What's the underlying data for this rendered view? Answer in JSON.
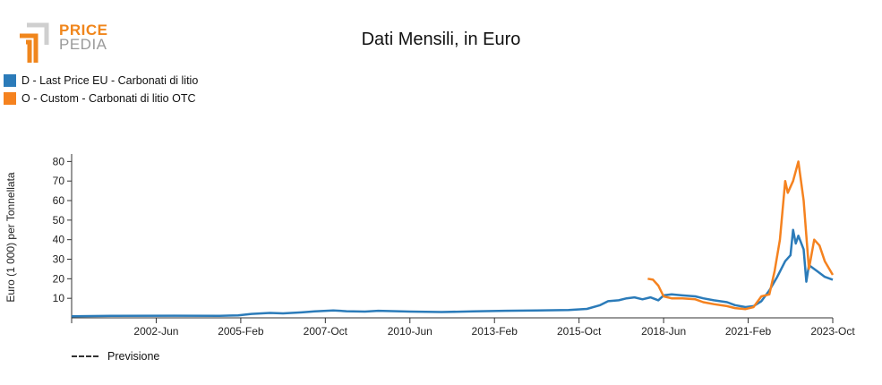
{
  "logo": {
    "line1": "PRICE",
    "line2": "PEDIA"
  },
  "colors": {
    "series_eu": "#2b7bb9",
    "series_otc": "#f5821f",
    "axis": "#333333"
  },
  "chart_data": {
    "type": "line",
    "title": "Dati Mensili, in Euro",
    "ylabel": "Euro (1 000) per Tonnellata",
    "xlabel": "",
    "ylim": [
      0,
      82
    ],
    "yticks": [
      10,
      20,
      30,
      40,
      50,
      60,
      70,
      80
    ],
    "xlim": [
      "1999-10",
      "2023-10"
    ],
    "xticks": [
      "2002-Jun",
      "2005-Feb",
      "2007-Oct",
      "2010-Jun",
      "2013-Feb",
      "2015-Oct",
      "2018-Jun",
      "2021-Feb",
      "2023-Oct"
    ],
    "xtick_months": [
      "2002-06",
      "2005-02",
      "2007-10",
      "2010-06",
      "2013-02",
      "2015-10",
      "2018-06",
      "2021-02",
      "2023-10"
    ],
    "legend_position": "top-left",
    "forecast_label": "Previsione",
    "series": [
      {
        "name": "D - Last Price EU - Carbonati di litio",
        "color": "#2b7bb9",
        "points": [
          [
            "1999-10",
            0.8
          ],
          [
            "2001-01",
            1.0
          ],
          [
            "2003-01",
            1.1
          ],
          [
            "2004-06",
            1.0
          ],
          [
            "2005-01",
            1.3
          ],
          [
            "2005-06",
            2.0
          ],
          [
            "2006-01",
            2.5
          ],
          [
            "2006-06",
            2.3
          ],
          [
            "2007-01",
            2.8
          ],
          [
            "2007-06",
            3.3
          ],
          [
            "2008-01",
            3.8
          ],
          [
            "2008-06",
            3.4
          ],
          [
            "2009-01",
            3.2
          ],
          [
            "2009-06",
            3.6
          ],
          [
            "2010-01",
            3.4
          ],
          [
            "2010-06",
            3.2
          ],
          [
            "2011-06",
            3.0
          ],
          [
            "2012-06",
            3.3
          ],
          [
            "2013-06",
            3.6
          ],
          [
            "2014-06",
            3.8
          ],
          [
            "2015-06",
            4.0
          ],
          [
            "2016-01",
            4.6
          ],
          [
            "2016-06",
            6.5
          ],
          [
            "2016-09",
            8.5
          ],
          [
            "2017-01",
            9.0
          ],
          [
            "2017-04",
            10.0
          ],
          [
            "2017-07",
            10.5
          ],
          [
            "2017-10",
            9.5
          ],
          [
            "2018-01",
            10.5
          ],
          [
            "2018-04",
            9.0
          ],
          [
            "2018-06",
            11.5
          ],
          [
            "2018-09",
            12.0
          ],
          [
            "2019-01",
            11.5
          ],
          [
            "2019-06",
            11.0
          ],
          [
            "2019-09",
            10.0
          ],
          [
            "2020-01",
            9.0
          ],
          [
            "2020-06",
            8.0
          ],
          [
            "2020-09",
            6.5
          ],
          [
            "2021-01",
            5.5
          ],
          [
            "2021-04",
            6.0
          ],
          [
            "2021-07",
            8.5
          ],
          [
            "2021-10",
            14.0
          ],
          [
            "2022-01",
            21.0
          ],
          [
            "2022-04",
            29.0
          ],
          [
            "2022-06",
            32.0
          ],
          [
            "2022-07",
            45.0
          ],
          [
            "2022-08",
            38.0
          ],
          [
            "2022-09",
            42.0
          ],
          [
            "2022-11",
            35.0
          ],
          [
            "2022-12",
            18.5
          ],
          [
            "2023-01",
            27.0
          ],
          [
            "2023-04",
            24.0
          ],
          [
            "2023-07",
            21.0
          ],
          [
            "2023-10",
            19.5
          ]
        ]
      },
      {
        "name": "O - Custom - Carbonati di litio OTC",
        "color": "#f5821f",
        "points": [
          [
            "2017-12",
            20.0
          ],
          [
            "2018-02",
            19.5
          ],
          [
            "2018-04",
            16.5
          ],
          [
            "2018-06",
            11.0
          ],
          [
            "2018-09",
            10.0
          ],
          [
            "2019-01",
            10.0
          ],
          [
            "2019-06",
            9.5
          ],
          [
            "2019-09",
            8.0
          ],
          [
            "2020-01",
            7.0
          ],
          [
            "2020-06",
            6.0
          ],
          [
            "2020-09",
            5.0
          ],
          [
            "2021-01",
            4.5
          ],
          [
            "2021-04",
            5.5
          ],
          [
            "2021-07",
            11.0
          ],
          [
            "2021-10",
            12.0
          ],
          [
            "2021-12",
            24.0
          ],
          [
            "2022-02",
            40.0
          ],
          [
            "2022-04",
            70.0
          ],
          [
            "2022-05",
            64.0
          ],
          [
            "2022-07",
            70.0
          ],
          [
            "2022-09",
            80.0
          ],
          [
            "2022-11",
            60.0
          ],
          [
            "2022-12",
            42.0
          ],
          [
            "2023-01",
            25.0
          ],
          [
            "2023-03",
            40.0
          ],
          [
            "2023-05",
            37.0
          ],
          [
            "2023-07",
            29.0
          ],
          [
            "2023-10",
            22.0
          ]
        ]
      }
    ]
  }
}
